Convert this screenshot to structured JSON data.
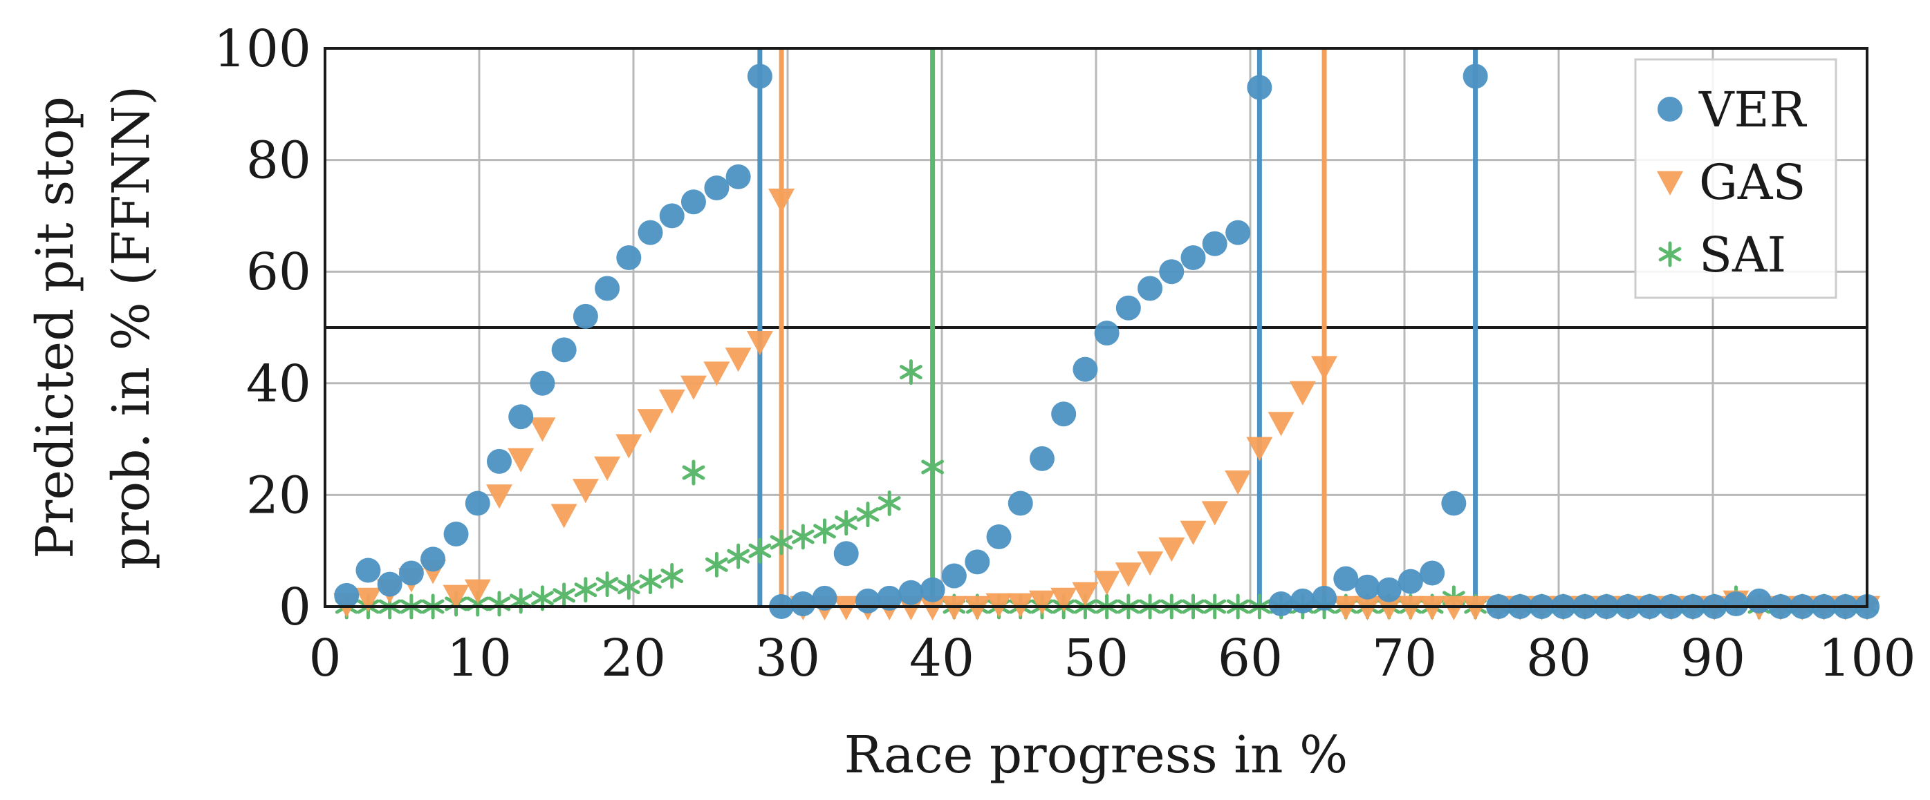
{
  "chart_data": {
    "type": "scatter",
    "xlabel": "Race progress in %",
    "ylabel_lines": [
      "Predicted pit stop",
      "prob. in % (FFNN)"
    ],
    "xlim": [
      0,
      100
    ],
    "ylim": [
      0,
      100
    ],
    "xticks": [
      0,
      10,
      20,
      30,
      40,
      50,
      60,
      70,
      80,
      90,
      100
    ],
    "yticks": [
      0,
      20,
      40,
      60,
      80,
      100
    ],
    "grid": true,
    "legend_position": "top-right",
    "threshold": 50,
    "series": [
      {
        "name": "VER",
        "marker": "circle",
        "color": "#4c92c3",
        "pit_stops": [
          28.2,
          60.6,
          74.6
        ],
        "points": [
          [
            1.4,
            2
          ],
          [
            2.8,
            6.5
          ],
          [
            4.2,
            4
          ],
          [
            5.6,
            6
          ],
          [
            7.0,
            8.5
          ],
          [
            8.5,
            13
          ],
          [
            9.9,
            18.5
          ],
          [
            11.3,
            26
          ],
          [
            12.7,
            34
          ],
          [
            14.1,
            40
          ],
          [
            15.5,
            46
          ],
          [
            16.9,
            52
          ],
          [
            18.3,
            57
          ],
          [
            19.7,
            62.5
          ],
          [
            21.1,
            67
          ],
          [
            22.5,
            70
          ],
          [
            23.9,
            72.5
          ],
          [
            25.4,
            75
          ],
          [
            26.8,
            77
          ],
          [
            28.2,
            95
          ],
          [
            29.6,
            0
          ],
          [
            31.0,
            0.5
          ],
          [
            32.4,
            1.5
          ],
          [
            33.8,
            9.5
          ],
          [
            35.2,
            1
          ],
          [
            36.6,
            1.5
          ],
          [
            38.0,
            2.5
          ],
          [
            39.4,
            3
          ],
          [
            40.8,
            5.5
          ],
          [
            42.3,
            8
          ],
          [
            43.7,
            12.5
          ],
          [
            45.1,
            18.5
          ],
          [
            46.5,
            26.5
          ],
          [
            47.9,
            34.5
          ],
          [
            49.3,
            42.5
          ],
          [
            50.7,
            49
          ],
          [
            52.1,
            53.5
          ],
          [
            53.5,
            57
          ],
          [
            54.9,
            60
          ],
          [
            56.3,
            62.5
          ],
          [
            57.7,
            65
          ],
          [
            59.2,
            67
          ],
          [
            60.6,
            93
          ],
          [
            62.0,
            0.5
          ],
          [
            63.4,
            1
          ],
          [
            64.8,
            1.5
          ],
          [
            66.2,
            5
          ],
          [
            67.6,
            3.5
          ],
          [
            69.0,
            3
          ],
          [
            70.4,
            4.5
          ],
          [
            71.8,
            6
          ],
          [
            73.2,
            18.5
          ],
          [
            74.6,
            95
          ],
          [
            76.1,
            0
          ],
          [
            77.5,
            0
          ],
          [
            78.9,
            0
          ],
          [
            80.3,
            0
          ],
          [
            81.7,
            0
          ],
          [
            83.1,
            0
          ],
          [
            84.5,
            0
          ],
          [
            85.9,
            0
          ],
          [
            87.3,
            0
          ],
          [
            88.7,
            0
          ],
          [
            90.1,
            0
          ],
          [
            91.5,
            0.5
          ],
          [
            93.0,
            1
          ],
          [
            94.4,
            0
          ],
          [
            95.8,
            0
          ],
          [
            97.2,
            0
          ],
          [
            98.6,
            0
          ],
          [
            100.0,
            0
          ]
        ]
      },
      {
        "name": "GAS",
        "marker": "triangle-down",
        "color": "#f5a05a",
        "pit_stops": [
          29.6,
          64.8
        ],
        "points": [
          [
            1.4,
            0.5
          ],
          [
            2.8,
            1.5
          ],
          [
            4.2,
            3
          ],
          [
            5.6,
            5
          ],
          [
            7.0,
            6.5
          ],
          [
            8.5,
            2
          ],
          [
            9.9,
            3
          ],
          [
            11.3,
            20
          ],
          [
            12.7,
            26.5
          ],
          [
            14.1,
            32
          ],
          [
            15.5,
            16.5
          ],
          [
            16.9,
            21
          ],
          [
            18.3,
            25
          ],
          [
            19.7,
            29
          ],
          [
            21.1,
            33.5
          ],
          [
            22.5,
            37
          ],
          [
            23.9,
            39.5
          ],
          [
            25.4,
            42
          ],
          [
            26.8,
            44.5
          ],
          [
            28.2,
            47.5
          ],
          [
            29.6,
            73
          ],
          [
            31.0,
            0
          ],
          [
            32.4,
            0
          ],
          [
            33.8,
            0
          ],
          [
            35.2,
            0
          ],
          [
            36.6,
            0
          ],
          [
            38.0,
            0
          ],
          [
            39.4,
            0
          ],
          [
            40.8,
            0
          ],
          [
            42.3,
            0
          ],
          [
            43.7,
            0.5
          ],
          [
            45.1,
            0.5
          ],
          [
            46.5,
            1
          ],
          [
            47.9,
            1.5
          ],
          [
            49.3,
            2.5
          ],
          [
            50.7,
            4.5
          ],
          [
            52.1,
            6
          ],
          [
            53.5,
            8
          ],
          [
            54.9,
            10.5
          ],
          [
            56.3,
            13.5
          ],
          [
            57.7,
            17
          ],
          [
            59.2,
            22.5
          ],
          [
            60.6,
            28.5
          ],
          [
            62.0,
            33
          ],
          [
            63.4,
            38.5
          ],
          [
            64.8,
            43
          ],
          [
            66.2,
            0
          ],
          [
            67.6,
            0
          ],
          [
            69.0,
            0
          ],
          [
            70.4,
            0
          ],
          [
            71.8,
            0
          ],
          [
            73.2,
            0
          ],
          [
            74.6,
            0
          ],
          [
            76.1,
            0
          ],
          [
            77.5,
            0
          ],
          [
            78.9,
            0
          ],
          [
            80.3,
            0
          ],
          [
            81.7,
            0
          ],
          [
            83.1,
            0
          ],
          [
            84.5,
            0
          ],
          [
            85.9,
            0
          ],
          [
            87.3,
            0
          ],
          [
            88.7,
            0
          ],
          [
            90.1,
            0
          ],
          [
            91.5,
            1
          ],
          [
            93.0,
            0
          ],
          [
            94.4,
            0
          ],
          [
            95.8,
            0
          ],
          [
            97.2,
            0
          ],
          [
            98.6,
            0
          ],
          [
            100.0,
            0
          ]
        ]
      },
      {
        "name": "SAI",
        "marker": "star",
        "color": "#5cb86c",
        "pit_stops": [
          39.4
        ],
        "points": [
          [
            1.4,
            0
          ],
          [
            2.8,
            0
          ],
          [
            4.2,
            0
          ],
          [
            5.6,
            0
          ],
          [
            7.0,
            0
          ],
          [
            8.5,
            0.5
          ],
          [
            9.9,
            0.5
          ],
          [
            11.3,
            0.5
          ],
          [
            12.7,
            1
          ],
          [
            14.1,
            1.5
          ],
          [
            15.5,
            2
          ],
          [
            16.9,
            3
          ],
          [
            18.3,
            4
          ],
          [
            19.7,
            3.5
          ],
          [
            21.1,
            4.5
          ],
          [
            22.5,
            5.5
          ],
          [
            23.9,
            24
          ],
          [
            25.4,
            7.5
          ],
          [
            26.8,
            9
          ],
          [
            28.2,
            10
          ],
          [
            29.6,
            11.5
          ],
          [
            31.0,
            12.5
          ],
          [
            32.4,
            13.5
          ],
          [
            33.8,
            15
          ],
          [
            35.2,
            16.5
          ],
          [
            36.6,
            18.5
          ],
          [
            38.0,
            42
          ],
          [
            39.4,
            25
          ],
          [
            40.8,
            0
          ],
          [
            42.3,
            0
          ],
          [
            43.7,
            0
          ],
          [
            45.1,
            0
          ],
          [
            46.5,
            0
          ],
          [
            47.9,
            0
          ],
          [
            49.3,
            0
          ],
          [
            50.7,
            0
          ],
          [
            52.1,
            0
          ],
          [
            53.5,
            0
          ],
          [
            54.9,
            0
          ],
          [
            56.3,
            0
          ],
          [
            57.7,
            0
          ],
          [
            59.2,
            0
          ],
          [
            60.6,
            0
          ],
          [
            62.0,
            0
          ],
          [
            63.4,
            0
          ],
          [
            64.8,
            0
          ],
          [
            66.2,
            0
          ],
          [
            67.6,
            0
          ],
          [
            69.0,
            0
          ],
          [
            70.4,
            0
          ],
          [
            71.8,
            0
          ],
          [
            73.2,
            1.5
          ],
          [
            74.6,
            0
          ],
          [
            76.1,
            0
          ],
          [
            77.5,
            0
          ],
          [
            78.9,
            0
          ],
          [
            80.3,
            0
          ],
          [
            81.7,
            0
          ],
          [
            83.1,
            0
          ],
          [
            84.5,
            0
          ],
          [
            85.9,
            0
          ],
          [
            87.3,
            0
          ],
          [
            88.7,
            0
          ],
          [
            90.1,
            0
          ],
          [
            91.5,
            1.5
          ],
          [
            93.0,
            0
          ],
          [
            94.4,
            0
          ],
          [
            95.8,
            0
          ],
          [
            97.2,
            0
          ],
          [
            98.6,
            0
          ],
          [
            100.0,
            0
          ]
        ]
      }
    ]
  }
}
